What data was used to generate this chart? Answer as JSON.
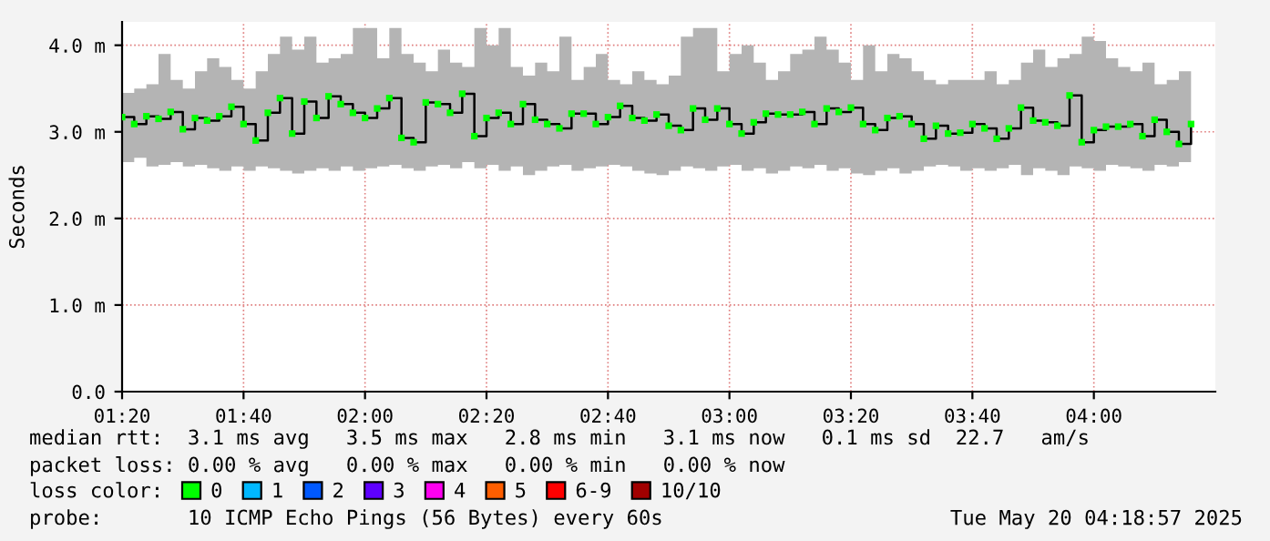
{
  "chart_data": {
    "type": "step",
    "ylabel": "Seconds",
    "x": [
      "2025-05-20T01:20",
      "2025-05-20T01:22",
      "2025-05-20T01:24",
      "2025-05-20T01:26",
      "2025-05-20T01:28",
      "2025-05-20T01:30",
      "2025-05-20T01:32",
      "2025-05-20T01:34",
      "2025-05-20T01:36",
      "2025-05-20T01:38",
      "2025-05-20T01:40",
      "2025-05-20T01:42",
      "2025-05-20T01:44",
      "2025-05-20T01:46",
      "2025-05-20T01:48",
      "2025-05-20T01:50",
      "2025-05-20T01:52",
      "2025-05-20T01:54",
      "2025-05-20T01:56",
      "2025-05-20T01:58",
      "2025-05-20T02:00",
      "2025-05-20T02:02",
      "2025-05-20T02:04",
      "2025-05-20T02:06",
      "2025-05-20T02:08",
      "2025-05-20T02:10",
      "2025-05-20T02:12",
      "2025-05-20T02:14",
      "2025-05-20T02:16",
      "2025-05-20T02:18",
      "2025-05-20T02:20",
      "2025-05-20T02:22",
      "2025-05-20T02:24",
      "2025-05-20T02:26",
      "2025-05-20T02:28",
      "2025-05-20T02:30",
      "2025-05-20T02:32",
      "2025-05-20T02:34",
      "2025-05-20T02:36",
      "2025-05-20T02:38",
      "2025-05-20T02:40",
      "2025-05-20T02:42",
      "2025-05-20T02:44",
      "2025-05-20T02:46",
      "2025-05-20T02:48",
      "2025-05-20T02:50",
      "2025-05-20T02:52",
      "2025-05-20T02:54",
      "2025-05-20T02:56",
      "2025-05-20T02:58",
      "2025-05-20T03:00",
      "2025-05-20T03:02",
      "2025-05-20T03:04",
      "2025-05-20T03:06",
      "2025-05-20T03:08",
      "2025-05-20T03:10",
      "2025-05-20T03:12",
      "2025-05-20T03:14",
      "2025-05-20T03:16",
      "2025-05-20T03:18",
      "2025-05-20T03:20",
      "2025-05-20T03:22",
      "2025-05-20T03:24",
      "2025-05-20T03:26",
      "2025-05-20T03:28",
      "2025-05-20T03:30",
      "2025-05-20T03:32",
      "2025-05-20T03:34",
      "2025-05-20T03:36",
      "2025-05-20T03:38",
      "2025-05-20T03:40",
      "2025-05-20T03:42",
      "2025-05-20T03:44",
      "2025-05-20T03:46",
      "2025-05-20T03:48",
      "2025-05-20T03:50",
      "2025-05-20T03:52",
      "2025-05-20T03:54",
      "2025-05-20T03:56",
      "2025-05-20T03:58",
      "2025-05-20T04:00",
      "2025-05-20T04:02",
      "2025-05-20T04:04",
      "2025-05-20T04:06",
      "2025-05-20T04:08",
      "2025-05-20T04:10",
      "2025-05-20T04:12",
      "2025-05-20T04:14",
      "2025-05-20T04:16"
    ],
    "series": [
      {
        "name": "0",
        "color": "#00ff00",
        "values": [
          3.17,
          3.09,
          3.18,
          3.15,
          3.23,
          3.03,
          3.16,
          3.13,
          3.18,
          3.29,
          3.09,
          2.9,
          3.22,
          3.39,
          2.98,
          3.35,
          3.16,
          3.41,
          3.32,
          3.22,
          3.16,
          3.27,
          3.39,
          2.93,
          2.88,
          3.34,
          3.32,
          3.22,
          3.44,
          2.95,
          3.16,
          3.22,
          3.09,
          3.32,
          3.14,
          3.09,
          3.04,
          3.21,
          3.21,
          3.09,
          3.17,
          3.3,
          3.16,
          3.13,
          3.2,
          3.07,
          3.02,
          3.27,
          3.14,
          3.27,
          3.09,
          2.98,
          3.11,
          3.21,
          3.2,
          3.2,
          3.23,
          3.09,
          3.27,
          3.23,
          3.28,
          3.09,
          3.02,
          3.16,
          3.18,
          3.09,
          2.92,
          3.07,
          2.98,
          2.99,
          3.09,
          3.04,
          2.92,
          3.04,
          3.28,
          3.13,
          3.11,
          3.07,
          3.42,
          2.88,
          3.02,
          3.06,
          3.06,
          3.09,
          2.95,
          3.14,
          3.0,
          2.86,
          3.09
        ],
        "lower": [
          2.65,
          2.7,
          2.6,
          2.62,
          2.65,
          2.6,
          2.62,
          2.58,
          2.55,
          2.6,
          2.55,
          2.6,
          2.58,
          2.55,
          2.52,
          2.55,
          2.58,
          2.55,
          2.6,
          2.55,
          2.58,
          2.6,
          2.62,
          2.58,
          2.55,
          2.6,
          2.62,
          2.58,
          2.65,
          2.58,
          2.62,
          2.55,
          2.6,
          2.5,
          2.55,
          2.6,
          2.62,
          2.55,
          2.58,
          2.6,
          2.62,
          2.6,
          2.55,
          2.52,
          2.5,
          2.55,
          2.6,
          2.58,
          2.55,
          2.6,
          2.62,
          2.55,
          2.58,
          2.52,
          2.55,
          2.6,
          2.58,
          2.62,
          2.55,
          2.58,
          2.52,
          2.5,
          2.55,
          2.58,
          2.52,
          2.55,
          2.6,
          2.62,
          2.6,
          2.55,
          2.58,
          2.55,
          2.58,
          2.62,
          2.5,
          2.58,
          2.55,
          2.5,
          2.6,
          2.58,
          2.55,
          2.62,
          2.6,
          2.58,
          2.55,
          2.62,
          2.6,
          2.65,
          2.62
        ],
        "upper": [
          3.45,
          3.5,
          3.55,
          3.9,
          3.6,
          3.5,
          3.7,
          3.85,
          3.75,
          3.6,
          3.5,
          3.7,
          3.9,
          4.1,
          3.95,
          4.1,
          3.8,
          3.85,
          3.9,
          4.2,
          4.2,
          3.85,
          4.2,
          3.9,
          3.8,
          3.7,
          3.95,
          3.8,
          3.75,
          4.2,
          4.0,
          4.2,
          3.75,
          3.65,
          3.8,
          3.7,
          4.1,
          3.6,
          3.75,
          3.9,
          3.6,
          3.55,
          3.7,
          3.6,
          3.55,
          3.65,
          4.1,
          4.2,
          4.2,
          3.7,
          3.9,
          4.0,
          3.8,
          3.6,
          3.7,
          3.9,
          3.95,
          4.1,
          3.95,
          3.8,
          3.6,
          4.0,
          3.7,
          3.9,
          3.85,
          3.7,
          3.6,
          3.55,
          3.6,
          3.6,
          3.6,
          3.7,
          3.55,
          3.6,
          3.8,
          3.95,
          3.75,
          3.85,
          3.9,
          4.1,
          4.05,
          3.85,
          3.75,
          3.7,
          3.8,
          3.55,
          3.6,
          3.7,
          3.6
        ]
      },
      {
        "name": "1",
        "color": "#00b8ff",
        "values": [
          null,
          null,
          null,
          null,
          null,
          null,
          null,
          null,
          null,
          null,
          null,
          null,
          null,
          null,
          null,
          null,
          null,
          null,
          null,
          null,
          null,
          null,
          null,
          null,
          null,
          null,
          null,
          null,
          null,
          null,
          null,
          null,
          null,
          null,
          null,
          null,
          null,
          null,
          null,
          null,
          null,
          null,
          null,
          null,
          null,
          null,
          null,
          null,
          null,
          null,
          null,
          null,
          null,
          null,
          null,
          null,
          null,
          null,
          null,
          null,
          null,
          null,
          null,
          null,
          null,
          null,
          null,
          null,
          null,
          null,
          null,
          null,
          null,
          null,
          null,
          null,
          null,
          null,
          null,
          null,
          null,
          null,
          null,
          null,
          null,
          null,
          null,
          null,
          null
        ]
      },
      {
        "name": "2",
        "color": "#0059ff",
        "values": [
          null,
          null,
          null,
          null,
          null,
          null,
          null,
          null,
          null,
          null,
          null,
          null,
          null,
          null,
          null,
          null,
          null,
          null,
          null,
          null,
          null,
          null,
          null,
          null,
          null,
          null,
          null,
          null,
          null,
          null,
          null,
          null,
          null,
          null,
          null,
          null,
          null,
          null,
          null,
          null,
          null,
          null,
          null,
          null,
          null,
          null,
          null,
          null,
          null,
          null,
          null,
          null,
          null,
          null,
          null,
          null,
          null,
          null,
          null,
          null,
          null,
          null,
          null,
          null,
          null,
          null,
          null,
          null,
          null,
          null,
          null,
          null,
          null,
          null,
          null,
          null,
          null,
          null,
          null,
          null,
          null,
          null,
          null,
          null,
          null,
          null,
          null,
          null,
          null
        ]
      },
      {
        "name": "3",
        "color": "#5e00ff",
        "values": [
          null,
          null,
          null,
          null,
          null,
          null,
          null,
          null,
          null,
          null,
          null,
          null,
          null,
          null,
          null,
          null,
          null,
          null,
          null,
          null,
          null,
          null,
          null,
          null,
          null,
          null,
          null,
          null,
          null,
          null,
          null,
          null,
          null,
          null,
          null,
          null,
          null,
          null,
          null,
          null,
          null,
          null,
          null,
          null,
          null,
          null,
          null,
          null,
          null,
          null,
          null,
          null,
          null,
          null,
          null,
          null,
          null,
          null,
          null,
          null,
          null,
          null,
          null,
          null,
          null,
          null,
          null,
          null,
          null,
          null,
          null,
          null,
          null,
          null,
          null,
          null,
          null,
          null,
          null,
          null,
          null,
          null,
          null,
          null,
          null,
          null,
          null,
          null,
          null
        ]
      },
      {
        "name": "4",
        "color": "#ff00f0",
        "values": [
          null,
          null,
          null,
          null,
          null,
          null,
          null,
          null,
          null,
          null,
          null,
          null,
          null,
          null,
          null,
          null,
          null,
          null,
          null,
          null,
          null,
          null,
          null,
          null,
          null,
          null,
          null,
          null,
          null,
          null,
          null,
          null,
          null,
          null,
          null,
          null,
          null,
          null,
          null,
          null,
          null,
          null,
          null,
          null,
          null,
          null,
          null,
          null,
          null,
          null,
          null,
          null,
          null,
          null,
          null,
          null,
          null,
          null,
          null,
          null,
          null,
          null,
          null,
          null,
          null,
          null,
          null,
          null,
          null,
          null,
          null,
          null,
          null,
          null,
          null,
          null,
          null,
          null,
          null,
          null,
          null,
          null,
          null,
          null,
          null,
          null,
          null,
          null,
          null
        ]
      },
      {
        "name": "5",
        "color": "#ff5e00",
        "values": [
          null,
          null,
          null,
          null,
          null,
          null,
          null,
          null,
          null,
          null,
          null,
          null,
          null,
          null,
          null,
          null,
          null,
          null,
          null,
          null,
          null,
          null,
          null,
          null,
          null,
          null,
          null,
          null,
          null,
          null,
          null,
          null,
          null,
          null,
          null,
          null,
          null,
          null,
          null,
          null,
          null,
          null,
          null,
          null,
          null,
          null,
          null,
          null,
          null,
          null,
          null,
          null,
          null,
          null,
          null,
          null,
          null,
          null,
          null,
          null,
          null,
          null,
          null,
          null,
          null,
          null,
          null,
          null,
          null,
          null,
          null,
          null,
          null,
          null,
          null,
          null,
          null,
          null,
          null,
          null,
          null,
          null,
          null,
          null,
          null,
          null,
          null,
          null,
          null
        ]
      },
      {
        "name": "6-9",
        "color": "#ff0000",
        "values": [
          null,
          null,
          null,
          null,
          null,
          null,
          null,
          null,
          null,
          null,
          null,
          null,
          null,
          null,
          null,
          null,
          null,
          null,
          null,
          null,
          null,
          null,
          null,
          null,
          null,
          null,
          null,
          null,
          null,
          null,
          null,
          null,
          null,
          null,
          null,
          null,
          null,
          null,
          null,
          null,
          null,
          null,
          null,
          null,
          null,
          null,
          null,
          null,
          null,
          null,
          null,
          null,
          null,
          null,
          null,
          null,
          null,
          null,
          null,
          null,
          null,
          null,
          null,
          null,
          null,
          null,
          null,
          null,
          null,
          null,
          null,
          null,
          null,
          null,
          null,
          null,
          null,
          null,
          null,
          null,
          null,
          null,
          null,
          null,
          null,
          null,
          null,
          null,
          null
        ]
      },
      {
        "name": "10/10",
        "color": "#a10000",
        "values": [
          null,
          null,
          null,
          null,
          null,
          null,
          null,
          null,
          null,
          null,
          null,
          null,
          null,
          null,
          null,
          null,
          null,
          null,
          null,
          null,
          null,
          null,
          null,
          null,
          null,
          null,
          null,
          null,
          null,
          null,
          null,
          null,
          null,
          null,
          null,
          null,
          null,
          null,
          null,
          null,
          null,
          null,
          null,
          null,
          null,
          null,
          null,
          null,
          null,
          null,
          null,
          null,
          null,
          null,
          null,
          null,
          null,
          null,
          null,
          null,
          null,
          null,
          null,
          null,
          null,
          null,
          null,
          null,
          null,
          null,
          null,
          null,
          null,
          null,
          null,
          null,
          null,
          null,
          null,
          null,
          null,
          null,
          null,
          null,
          null,
          null,
          null,
          null,
          null
        ]
      }
    ],
    "marker": "square",
    "legend": "bottom",
    "legend_title": "loss color:",
    "xlim": [
      "2025-05-20T01:20",
      "2025-05-20T04:20"
    ],
    "xticks": [
      {
        "value": "2025-05-20T01:20",
        "label": "01:20"
      },
      {
        "value": "2025-05-20T01:40",
        "label": "01:40"
      },
      {
        "value": "2025-05-20T02:00",
        "label": "02:00"
      },
      {
        "value": "2025-05-20T02:20",
        "label": "02:20"
      },
      {
        "value": "2025-05-20T02:40",
        "label": "02:40"
      },
      {
        "value": "2025-05-20T03:00",
        "label": "03:00"
      },
      {
        "value": "2025-05-20T03:20",
        "label": "03:20"
      },
      {
        "value": "2025-05-20T03:40",
        "label": "03:40"
      },
      {
        "value": "2025-05-20T04:00",
        "label": "04:00"
      }
    ],
    "ylim": [
      0,
      4.27
    ],
    "yticks": [
      {
        "value": 0,
        "label": "0.0"
      },
      {
        "value": 1,
        "label": "1.0 m"
      },
      {
        "value": 2,
        "label": "2.0 m"
      },
      {
        "value": 3,
        "label": "3.0 m"
      },
      {
        "value": 4,
        "label": "4.0 m"
      }
    ],
    "grid": true,
    "annotations": [
      "median rtt:  3.1 ms avg   3.5 ms max   2.8 ms min   3.1 ms now   0.1 ms sd  22.7   am/s",
      "packet loss: 0.00 % avg   0.00 % max   0.00 % min   0.00 % now",
      "probe:       10 ICMP Echo Pings (56 Bytes) every 60s",
      "Tue May 20 04:18:57 2025"
    ]
  }
}
